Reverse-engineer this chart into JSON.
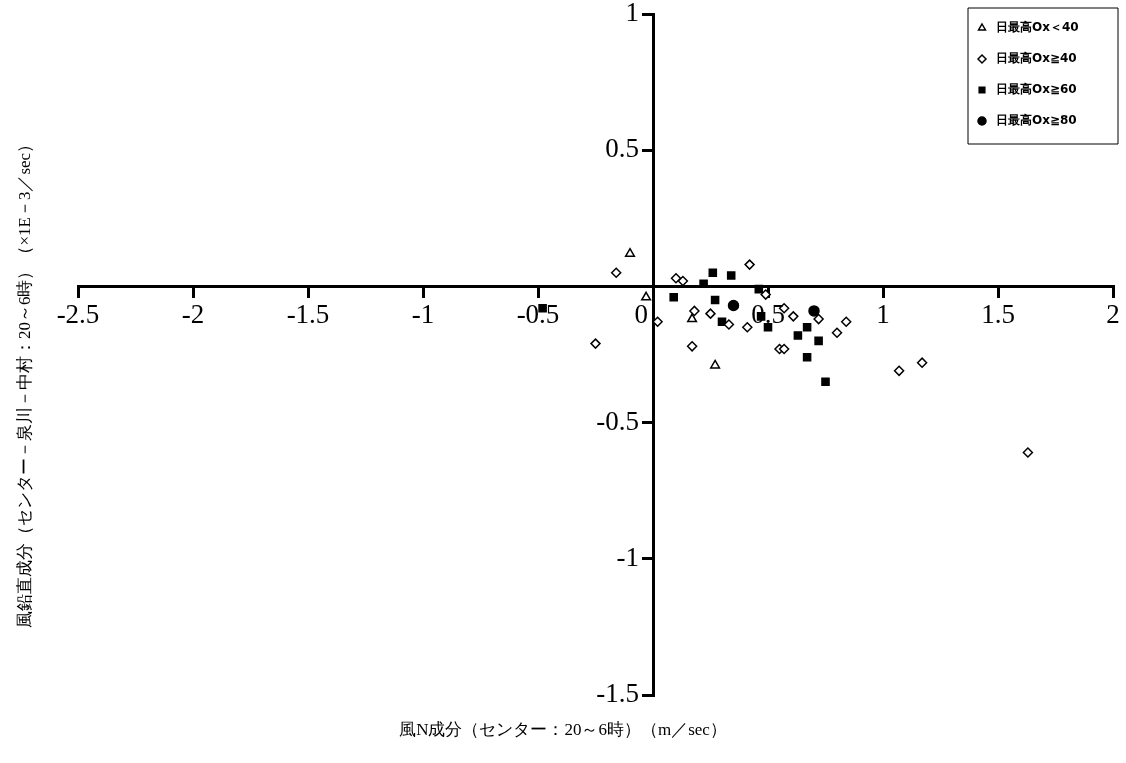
{
  "chart_data": {
    "type": "scatter",
    "xlabel": "風N成分（センター：20～6時）（m／sec）",
    "ylabel": "風鉛直成分（センター－泉川－中村：20～6時）（×1E－3／sec）",
    "xlim": [
      -2.5,
      2
    ],
    "ylim": [
      -1.5,
      1
    ],
    "xticks": [
      -2.5,
      -2,
      -1.5,
      -1,
      -0.5,
      0,
      0.5,
      1,
      1.5,
      2
    ],
    "yticks": [
      -1.5,
      -1,
      -0.5,
      0.5,
      1
    ],
    "grid": false,
    "legend": "top right",
    "series": [
      {
        "name": "日最高Ox＜40",
        "color": "#000000",
        "marker": "triangle",
        "x": [
          -0.1,
          -0.03,
          0.17,
          0.27
        ],
        "values": [
          0.12,
          -0.04,
          -0.12,
          -0.29
        ]
      },
      {
        "name": "日最高Ox≧40",
        "color": "#000000",
        "marker": "diamond",
        "x": [
          -0.16,
          -0.25,
          0.02,
          0.1,
          0.13,
          0.18,
          0.25,
          0.17,
          0.33,
          0.42,
          0.49,
          0.57,
          0.61,
          0.41,
          0.55,
          0.57,
          0.72,
          0.8,
          0.84,
          1.07,
          1.17,
          1.63
        ],
        "values": [
          0.05,
          -0.21,
          -0.13,
          0.03,
          0.02,
          -0.09,
          -0.1,
          -0.22,
          -0.14,
          0.08,
          -0.03,
          -0.08,
          -0.11,
          -0.15,
          -0.23,
          -0.23,
          -0.12,
          -0.17,
          -0.13,
          -0.31,
          -0.28,
          -0.61
        ]
      },
      {
        "name": "日最高Ox≧60",
        "color": "#000000",
        "marker": "square",
        "x": [
          -0.48,
          0.09,
          0.26,
          0.34,
          0.22,
          0.27,
          0.3,
          0.47,
          0.5,
          0.67,
          0.63,
          0.72,
          0.67,
          0.75,
          0.46
        ],
        "values": [
          -0.08,
          -0.04,
          0.05,
          0.04,
          0.01,
          -0.05,
          -0.13,
          -0.11,
          -0.15,
          -0.15,
          -0.18,
          -0.2,
          -0.26,
          -0.35,
          -0.01
        ]
      },
      {
        "name": "日最高Ox≧80",
        "color": "#000000",
        "marker": "circle",
        "x": [
          0.35,
          0.7
        ],
        "values": [
          -0.07,
          -0.09
        ]
      }
    ]
  }
}
